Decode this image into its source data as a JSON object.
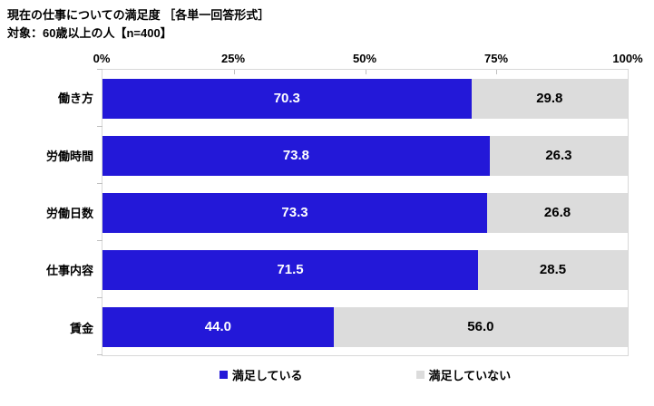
{
  "header": {
    "title": "現在の仕事についての満足度 ［各単一回答形式］",
    "subtitle": "対象：60歳以上の人【n=400】"
  },
  "chart_data": {
    "type": "bar",
    "orientation": "horizontal",
    "stacked": true,
    "title": "現在の仕事についての満足度 ［各単一回答形式］",
    "subtitle": "対象：60歳以上の人【n=400】",
    "categories": [
      "働き方",
      "労働時間",
      "労働日数",
      "仕事内容",
      "賃金"
    ],
    "series": [
      {
        "name": "満足している",
        "color": "#2318D8",
        "text_color": "#FFFFFF",
        "values": [
          70.3,
          73.8,
          73.3,
          71.5,
          44.0
        ]
      },
      {
        "name": "満足していない",
        "color": "#DCDCDC",
        "text_color": "#000000",
        "values": [
          29.8,
          26.3,
          26.8,
          28.5,
          56.0
        ]
      }
    ],
    "x_axis": {
      "min": 0,
      "max": 100,
      "tick_step": 25,
      "tick_labels": [
        "0%",
        "25%",
        "50%",
        "75%",
        "100%"
      ]
    },
    "legend": {
      "position": "bottom",
      "entries": [
        "満足している",
        "満足していない"
      ]
    },
    "value_format": "one_decimal",
    "grid": false
  },
  "style": {
    "background": "#FFFFFF",
    "plot_border_color": "#D8D8D8",
    "tick_color": "#BFBFBF",
    "text_color": "#000000"
  }
}
